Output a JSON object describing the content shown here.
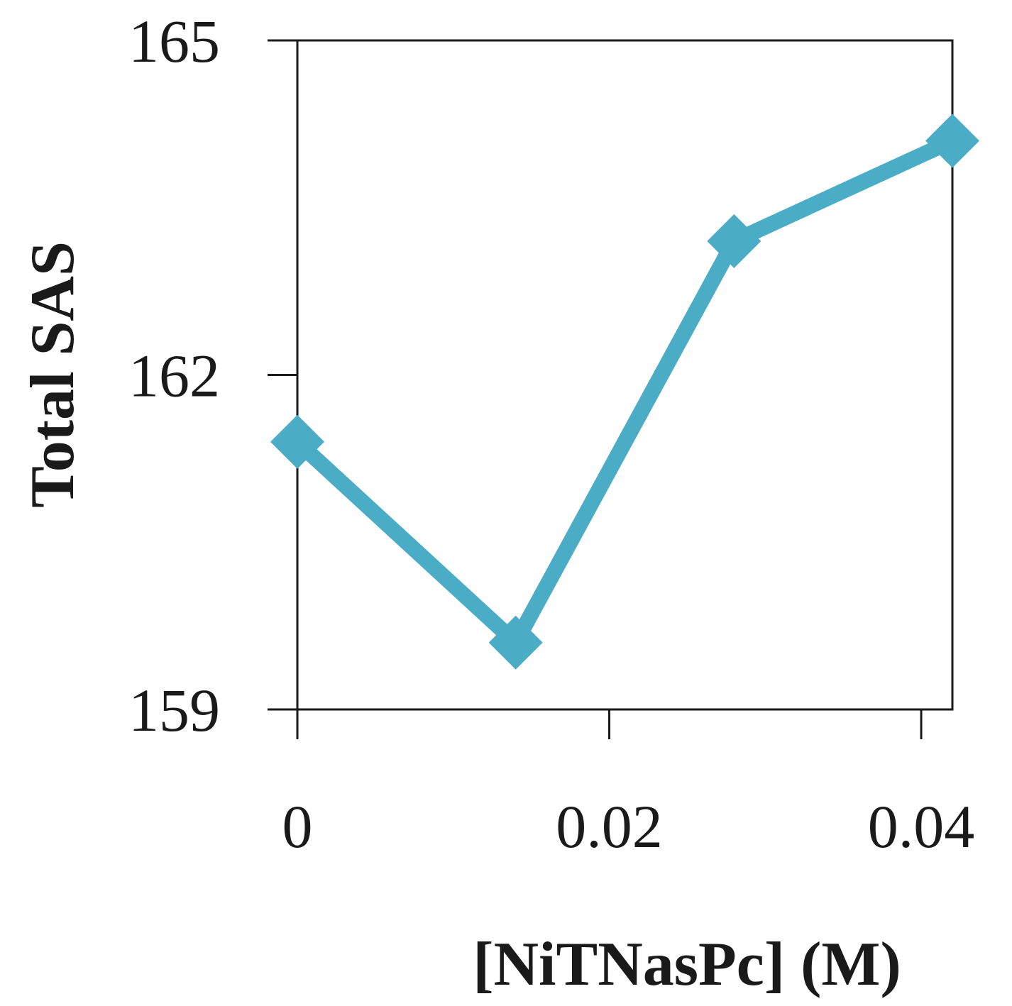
{
  "chart_data": {
    "type": "line",
    "title": "",
    "xlabel": "[NiTNasPc] (M)",
    "ylabel": "Total SAS",
    "xlim": [
      0,
      0.042
    ],
    "ylim": [
      159,
      165
    ],
    "xticks": [
      0,
      0.02,
      0.04
    ],
    "xtick_labels": [
      "0",
      "0.02",
      "0.04"
    ],
    "yticks": [
      159,
      162,
      165
    ],
    "ytick_labels": [
      "159",
      "162",
      "165"
    ],
    "grid": false,
    "legend": "none",
    "series": [
      {
        "color": "#4BACC6",
        "marker": "diamond",
        "x": [
          0,
          0.014,
          0.028,
          0.042
        ],
        "y": [
          161.4,
          159.6,
          163.2,
          164.1
        ]
      }
    ]
  }
}
